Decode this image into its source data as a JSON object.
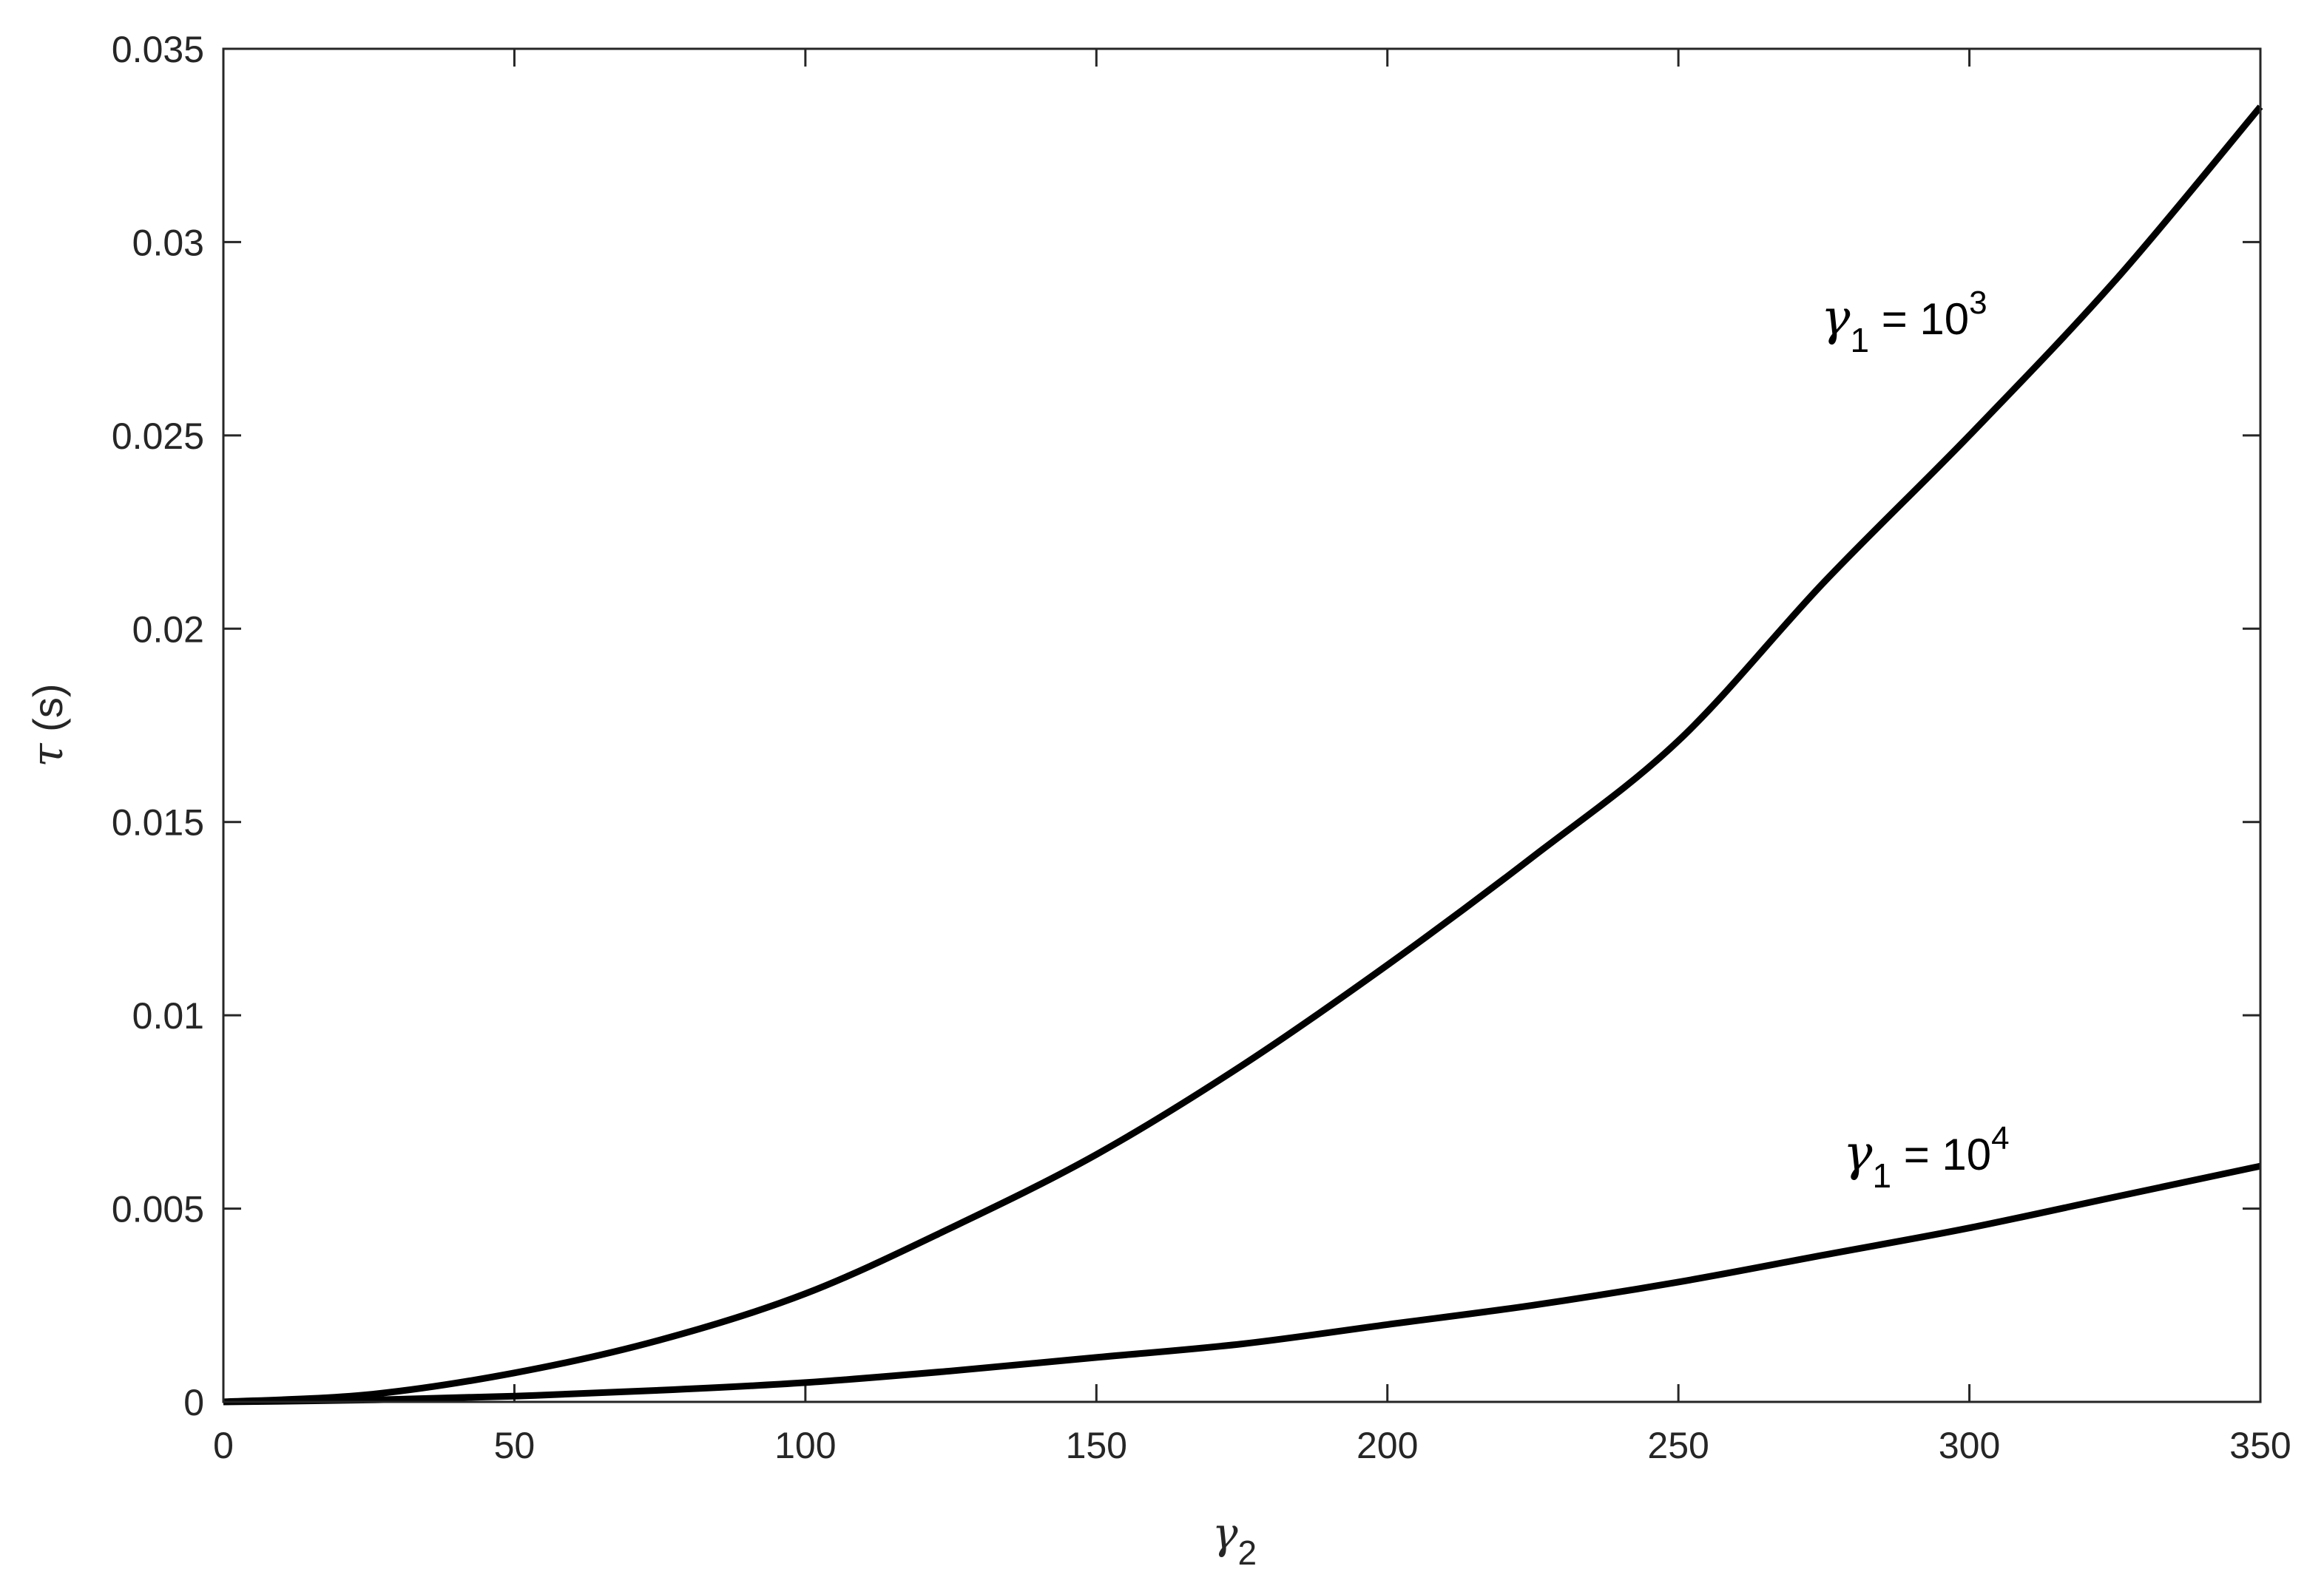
{
  "chart_data": {
    "type": "line",
    "xlabel": {
      "symbol": "γ",
      "sub": "2"
    },
    "ylabel": {
      "symbol": "τ",
      "unit": " (s)"
    },
    "xlim": [
      0,
      350
    ],
    "ylim": [
      0,
      0.035
    ],
    "xticks": [
      0,
      50,
      100,
      150,
      200,
      250,
      300,
      350
    ],
    "xtick_labels": [
      "0",
      "50",
      "100",
      "150",
      "200",
      "250",
      "300",
      "350"
    ],
    "yticks": [
      0,
      0.005,
      0.01,
      0.015,
      0.02,
      0.025,
      0.03,
      0.035
    ],
    "ytick_labels": [
      "0",
      "0.005",
      "0.01",
      "0.015",
      "0.02",
      "0.025",
      "0.03",
      "0.035"
    ],
    "grid": false,
    "series": [
      {
        "label": {
          "symbol": "γ",
          "sub": "1",
          "eq": " = 10",
          "sup": "3"
        },
        "color": "#000000",
        "x": [
          0,
          25,
          50,
          75,
          100,
          125,
          150,
          175,
          200,
          225,
          250,
          275,
          300,
          325,
          350
        ],
        "y": [
          0,
          0.00019,
          0.00075,
          0.0016,
          0.0028,
          0.0045,
          0.0064,
          0.0087,
          0.0113,
          0.0141,
          0.0171,
          0.0212,
          0.025,
          0.029,
          0.0335
        ]
      },
      {
        "label": {
          "symbol": "γ",
          "sub": "1",
          "eq": " = 10",
          "sup": "4"
        },
        "color": "#000000",
        "x": [
          0,
          25,
          50,
          75,
          100,
          125,
          150,
          175,
          200,
          225,
          250,
          275,
          300,
          325,
          350
        ],
        "y": [
          0,
          5e-05,
          0.00015,
          0.0003,
          0.0005,
          0.0008,
          0.00115,
          0.0015,
          0.002,
          0.0025,
          0.0031,
          0.0038,
          0.0045,
          0.0053,
          0.0061
        ]
      }
    ]
  }
}
